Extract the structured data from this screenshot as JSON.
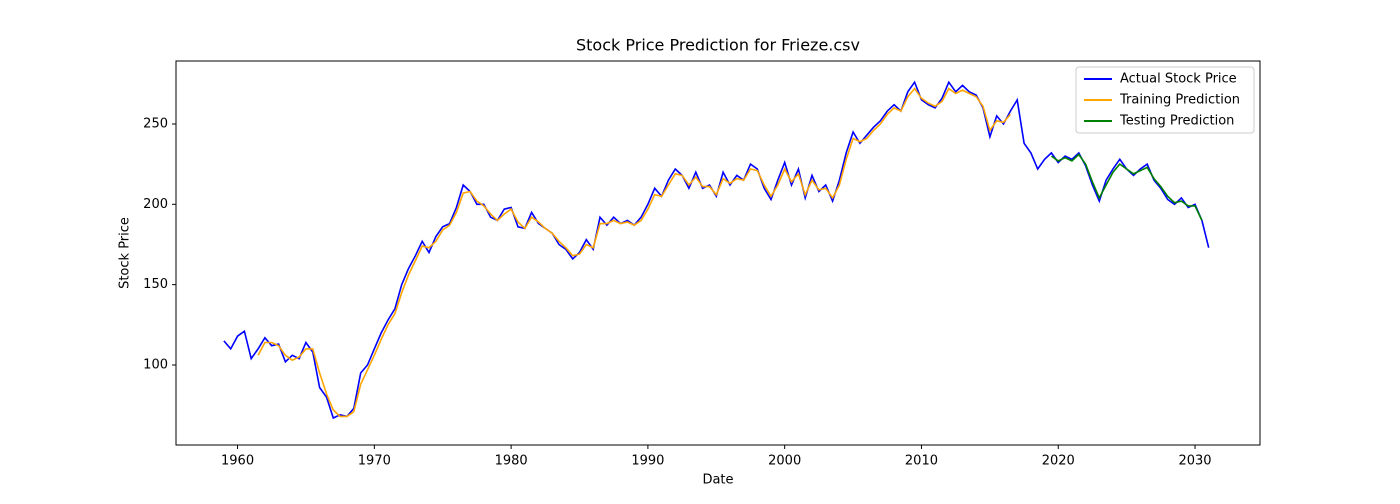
{
  "chart_data": {
    "type": "line",
    "title": "Stock Price Prediction for Frieze.csv",
    "x_label": "Date",
    "y_label": "Stock Price",
    "x": [
      1959,
      1959.5,
      1960,
      1960.5,
      1961,
      1961.5,
      1962,
      1962.5,
      1963,
      1963.5,
      1964,
      1964.5,
      1965,
      1965.5,
      1966,
      1966.5,
      1967,
      1967.5,
      1968,
      1968.5,
      1969,
      1969.5,
      1970,
      1970.5,
      1971,
      1971.5,
      1972,
      1972.5,
      1973,
      1973.5,
      1974,
      1974.5,
      1975,
      1975.5,
      1976,
      1976.5,
      1977,
      1977.5,
      1978,
      1978.5,
      1979,
      1979.5,
      1980,
      1980.5,
      1981,
      1981.5,
      1982,
      1982.5,
      1983,
      1983.5,
      1984,
      1984.5,
      1985,
      1985.5,
      1986,
      1986.5,
      1987,
      1987.5,
      1988,
      1988.5,
      1989,
      1989.5,
      1990,
      1990.5,
      1991,
      1991.5,
      1992,
      1992.5,
      1993,
      1993.5,
      1994,
      1994.5,
      1995,
      1995.5,
      1996,
      1996.5,
      1997,
      1997.5,
      1998,
      1998.5,
      1999,
      1999.5,
      2000,
      2000.5,
      2001,
      2001.5,
      2002,
      2002.5,
      2003,
      2003.5,
      2004,
      2004.5,
      2005,
      2005.5,
      2006,
      2006.5,
      2007,
      2007.5,
      2008,
      2008.5,
      2009,
      2009.5,
      2010,
      2010.5,
      2011,
      2011.5,
      2012,
      2012.5,
      2013,
      2013.5,
      2014,
      2014.5,
      2015,
      2015.5,
      2016,
      2016.5,
      2017,
      2017.5,
      2018,
      2018.5,
      2019,
      2019.5,
      2020,
      2020.5,
      2021,
      2021.5,
      2022,
      2022.5,
      2023,
      2023.5,
      2024,
      2024.5,
      2025,
      2025.5,
      2026,
      2026.5,
      2027,
      2027.5,
      2028,
      2028.5,
      2029,
      2029.5,
      2030,
      2030.5,
      2031
    ],
    "series": [
      {
        "name": "Actual Stock Price",
        "color": "#0000ff",
        "values": [
          115,
          110,
          118,
          121,
          104,
          110,
          117,
          112,
          113,
          102,
          106,
          104,
          114,
          108,
          86,
          80,
          67,
          69,
          68,
          73,
          95,
          100,
          110,
          120,
          128,
          135,
          150,
          160,
          168,
          177,
          170,
          180,
          186,
          188,
          198,
          212,
          208,
          200,
          200,
          192,
          190,
          197,
          198,
          186,
          185,
          195,
          188,
          185,
          182,
          175,
          172,
          166,
          170,
          178,
          172,
          192,
          187,
          192,
          188,
          190,
          187,
          192,
          200,
          210,
          205,
          215,
          222,
          218,
          210,
          220,
          210,
          212,
          205,
          220,
          212,
          218,
          215,
          225,
          222,
          210,
          203,
          215,
          226,
          212,
          222,
          204,
          218,
          208,
          212,
          202,
          215,
          232,
          245,
          238,
          243,
          248,
          252,
          258,
          262,
          258,
          270,
          276,
          265,
          262,
          260,
          266,
          276,
          270,
          274,
          270,
          268,
          260,
          242,
          255,
          250,
          258,
          265,
          238,
          232,
          222,
          228,
          232,
          226,
          230,
          228,
          232,
          224,
          212,
          202,
          215,
          222,
          228,
          222,
          218,
          222,
          225,
          215,
          210,
          203,
          200,
          204,
          198,
          200,
          190,
          173
        ]
      },
      {
        "name": "Training Prediction",
        "color": "#ffa500",
        "values": [
          null,
          null,
          null,
          null,
          null,
          106,
          114,
          114,
          112,
          106,
          103,
          105,
          110,
          110,
          95,
          82,
          72,
          68,
          68,
          71,
          88,
          97,
          106,
          116,
          125,
          132,
          145,
          156,
          165,
          174,
          173,
          177,
          184,
          187,
          195,
          207,
          208,
          202,
          199,
          194,
          190,
          194,
          197,
          189,
          185,
          192,
          189,
          185,
          182,
          177,
          173,
          168,
          169,
          175,
          173,
          188,
          188,
          190,
          188,
          189,
          187,
          190,
          197,
          206,
          205,
          212,
          219,
          218,
          212,
          217,
          211,
          211,
          206,
          216,
          213,
          216,
          215,
          222,
          221,
          212,
          205,
          212,
          222,
          214,
          219,
          206,
          215,
          209,
          210,
          204,
          212,
          228,
          241,
          239,
          241,
          246,
          250,
          256,
          260,
          258,
          267,
          272,
          266,
          263,
          261,
          264,
          272,
          269,
          271,
          269,
          267,
          261,
          246,
          252,
          251,
          256,
          null,
          null,
          null,
          null,
          null,
          null,
          null,
          null,
          null,
          null,
          null,
          null,
          null,
          null,
          null,
          null,
          null,
          null,
          null,
          null,
          null,
          null,
          null,
          null,
          null,
          null,
          null,
          null,
          null
        ]
      },
      {
        "name": "Testing Prediction",
        "color": "#008000",
        "values": [
          null,
          null,
          null,
          null,
          null,
          null,
          null,
          null,
          null,
          null,
          null,
          null,
          null,
          null,
          null,
          null,
          null,
          null,
          null,
          null,
          null,
          null,
          null,
          null,
          null,
          null,
          null,
          null,
          null,
          null,
          null,
          null,
          null,
          null,
          null,
          null,
          null,
          null,
          null,
          null,
          null,
          null,
          null,
          null,
          null,
          null,
          null,
          null,
          null,
          null,
          null,
          null,
          null,
          null,
          null,
          null,
          null,
          null,
          null,
          null,
          null,
          null,
          null,
          null,
          null,
          null,
          null,
          null,
          null,
          null,
          null,
          null,
          null,
          null,
          null,
          null,
          null,
          null,
          null,
          null,
          null,
          null,
          null,
          null,
          null,
          null,
          null,
          null,
          null,
          null,
          null,
          null,
          null,
          null,
          null,
          null,
          null,
          null,
          null,
          null,
          null,
          null,
          null,
          null,
          null,
          null,
          null,
          null,
          null,
          null,
          null,
          null,
          null,
          null,
          null,
          null,
          null,
          null,
          null,
          null,
          null,
          230,
          227,
          229,
          227,
          231,
          225,
          214,
          204,
          212,
          220,
          225,
          222,
          219,
          221,
          223,
          216,
          211,
          205,
          201,
          202,
          199,
          199,
          190,
          null
        ]
      }
    ],
    "xlim": [
      1955.5,
      2034.75
    ],
    "xticks": [
      1960,
      1970,
      1980,
      1990,
      2000,
      2010,
      2020,
      2030
    ],
    "ylim": [
      50.2,
      289.2
    ],
    "yticks": [
      100,
      150,
      200,
      250
    ],
    "legend": "upper right"
  }
}
